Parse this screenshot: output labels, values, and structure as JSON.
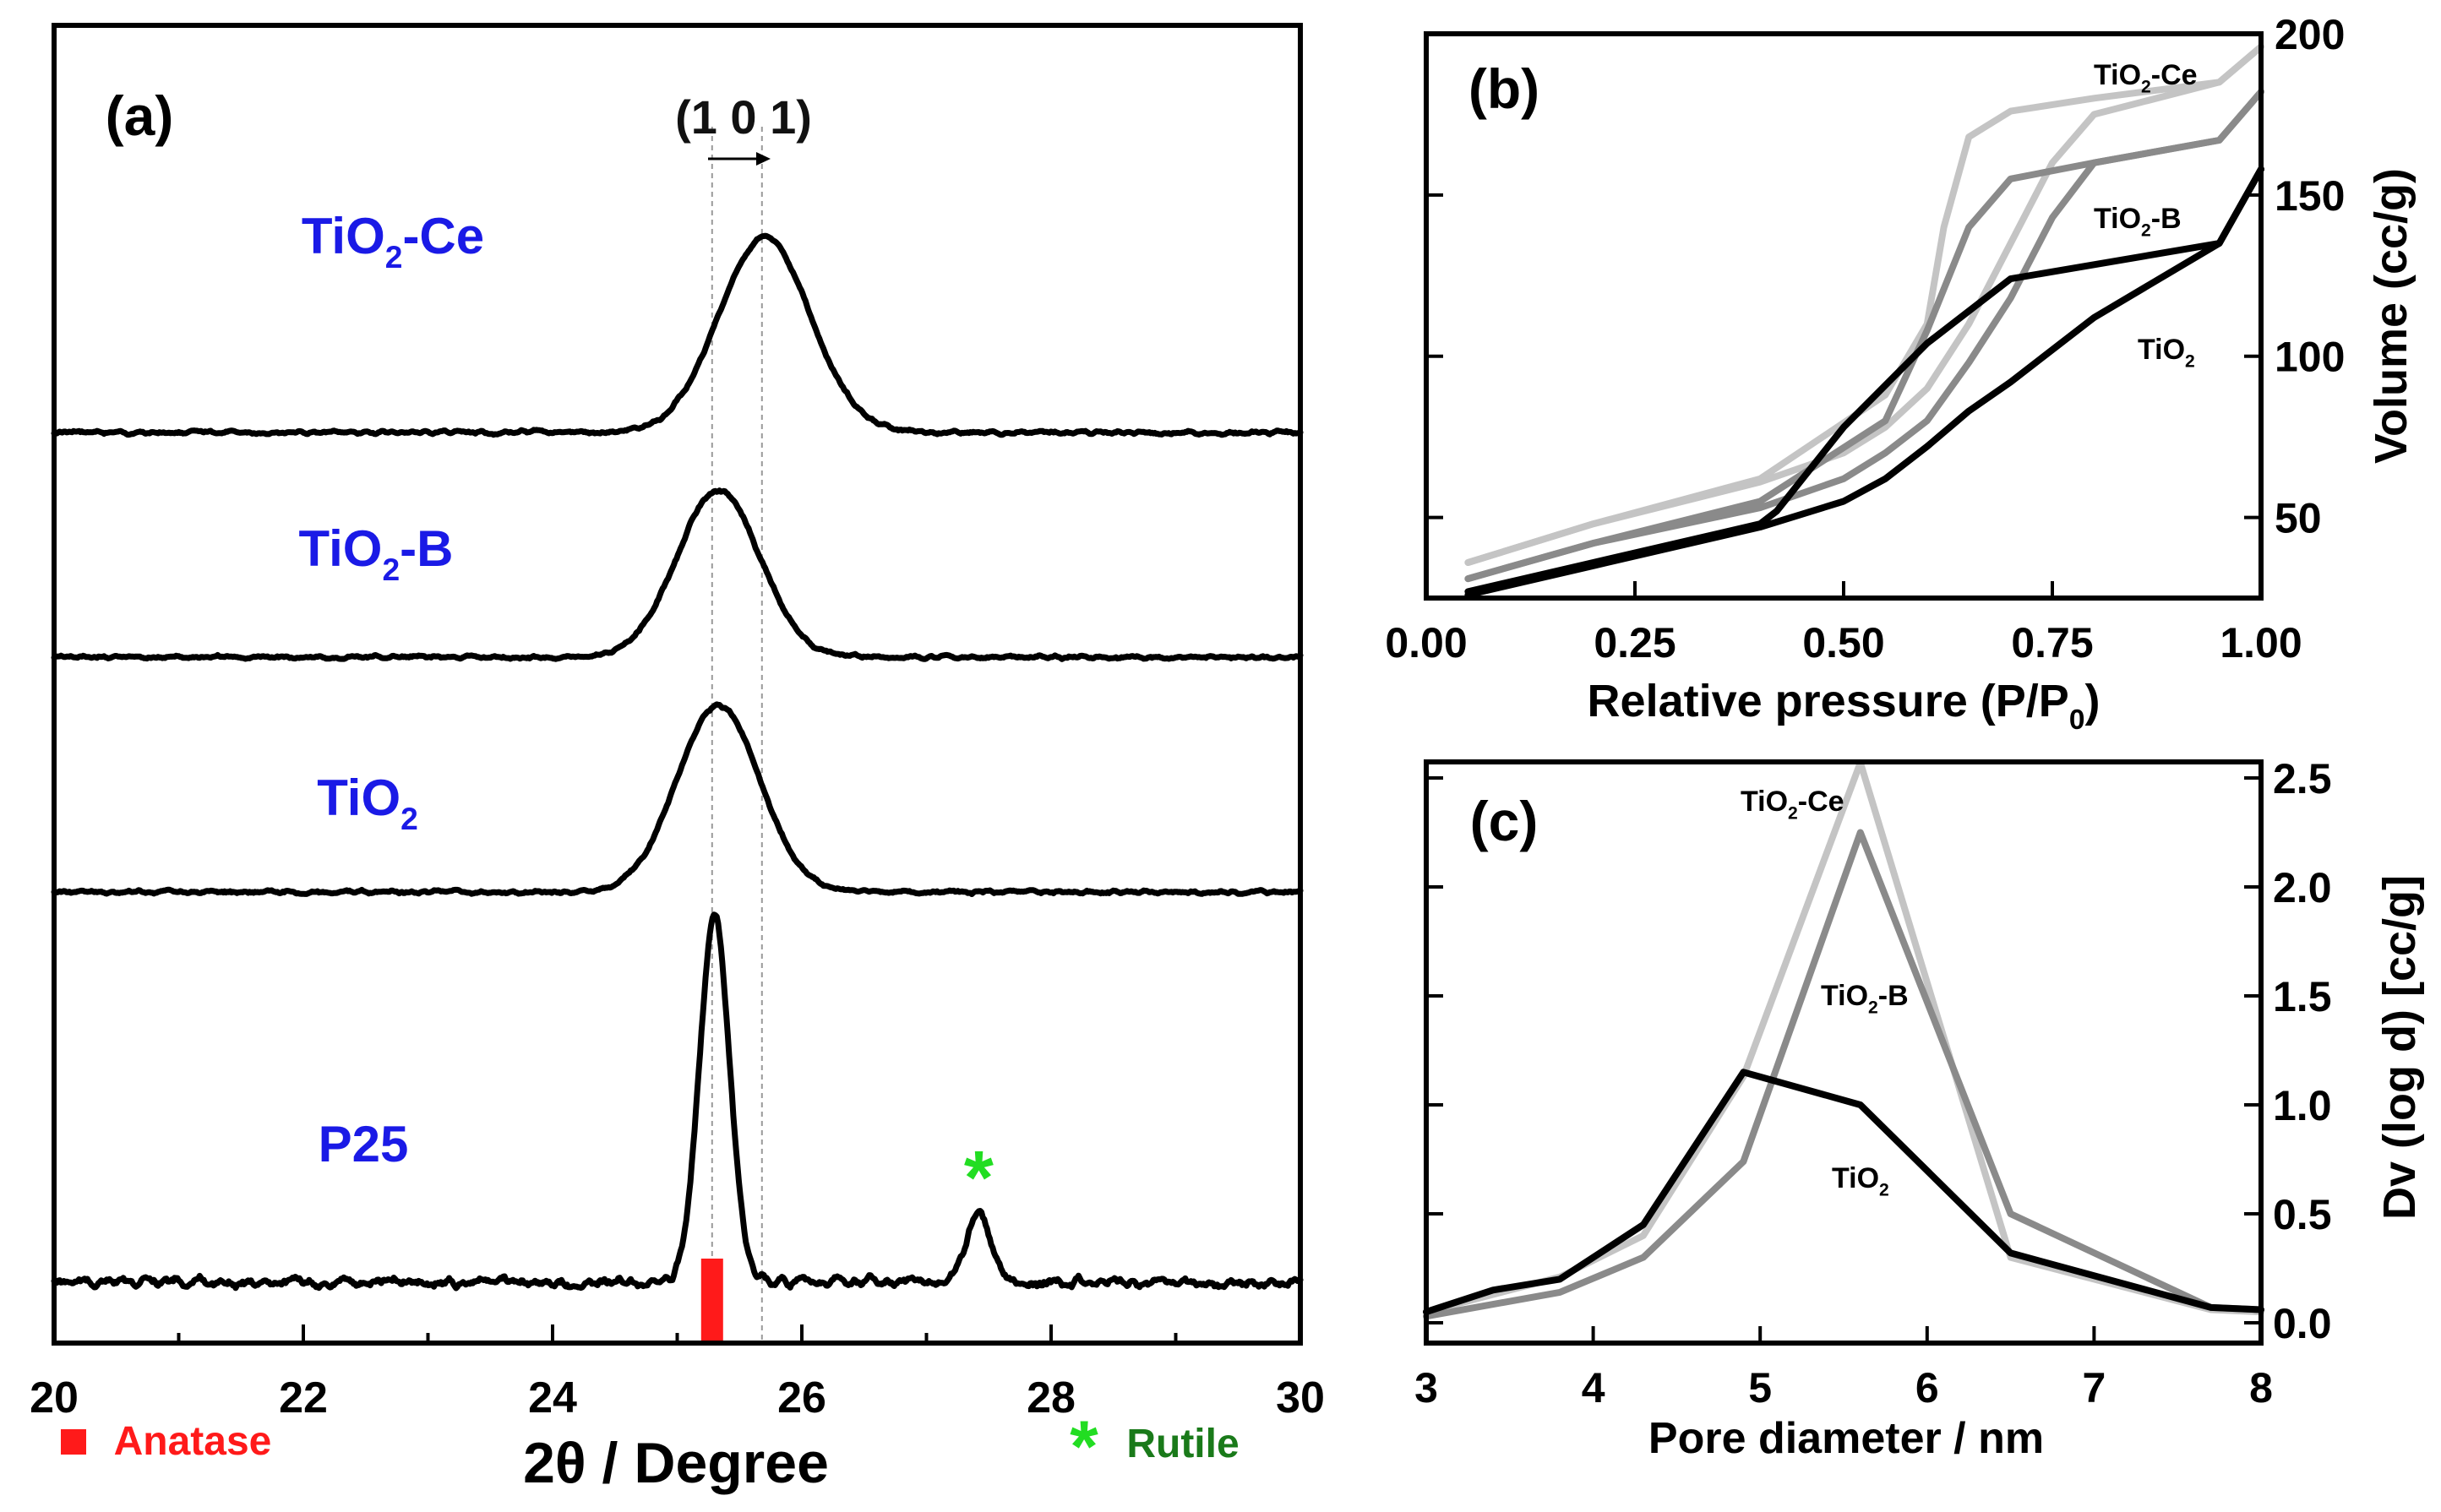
{
  "chart_data": [
    {
      "panel": "(a)",
      "type": "line",
      "xlabel": "2θ / Degree",
      "xlim": [
        20,
        30
      ],
      "xticks": [
        "20",
        "22",
        "24",
        "26",
        "28",
        "30"
      ],
      "reflection_label": "(1 0 1)",
      "reference_lines": [
        25.28,
        25.68
      ],
      "series": [
        {
          "name": "TiO₂-Ce",
          "label_main": "TiO",
          "label_sub": "2",
          "label_tail": "-Ce",
          "peak_center": 25.7,
          "peak_width": 0.52,
          "relative_height": 1.0
        },
        {
          "name": "TiO₂-B",
          "label_main": "TiO",
          "label_sub": "2",
          "label_tail": "-B",
          "peak_center": 25.33,
          "peak_width": 0.47,
          "relative_height": 0.86
        },
        {
          "name": "TiO₂",
          "label_main": "TiO",
          "label_sub": "2",
          "label_tail": "",
          "peak_center": 25.33,
          "peak_width": 0.47,
          "relative_height": 0.96
        },
        {
          "name": "P25",
          "label_main": "P25",
          "label_sub": "",
          "label_tail": "",
          "peak_center": 25.3,
          "peak_width": 0.17,
          "relative_height": 1.9,
          "secondary_peak_center": 27.42,
          "secondary_peak_height": 0.35
        }
      ],
      "legend": {
        "anatase": "Anatase",
        "rutile": "Rutile",
        "rutile_marker": "*",
        "anatase_position": 25.28
      },
      "colors": {
        "label": "#1a1ae6",
        "anatase": "#ff1a1a",
        "rutile": "#22dd22",
        "rutile_text": "#1a7a1a"
      }
    },
    {
      "panel": "(b)",
      "type": "line",
      "xlabel": "Relative pressure (P/P",
      "xlabel_sub": "0",
      "xlabel_tail": ")",
      "ylabel": "Volume (cc/g)",
      "xlim": [
        0.0,
        1.0
      ],
      "ylim": [
        25,
        200
      ],
      "xticks": [
        "0.00",
        "0.25",
        "0.50",
        "0.75",
        "1.00"
      ],
      "yticks": [
        "50",
        "100",
        "150",
        "200"
      ],
      "series": [
        {
          "name": "TiO₂-Ce",
          "label_main": "TiO",
          "label_sub": "2",
          "label_tail": "-Ce",
          "color": "#c4c4c4",
          "adsorption": [
            [
              0.05,
              36
            ],
            [
              0.2,
              48
            ],
            [
              0.4,
              61
            ],
            [
              0.5,
              70
            ],
            [
              0.55,
              78
            ],
            [
              0.6,
              90
            ],
            [
              0.65,
              110
            ],
            [
              0.7,
              135
            ],
            [
              0.75,
              160
            ],
            [
              0.8,
              175
            ],
            [
              0.95,
              185
            ],
            [
              1.0,
              196
            ]
          ],
          "desorption": [
            [
              1.0,
              196
            ],
            [
              0.95,
              185
            ],
            [
              0.8,
              180
            ],
            [
              0.7,
              176
            ],
            [
              0.65,
              168
            ],
            [
              0.62,
              140
            ],
            [
              0.6,
              110
            ],
            [
              0.55,
              88
            ],
            [
              0.4,
              62
            ],
            [
              0.2,
              48
            ],
            [
              0.05,
              36
            ]
          ]
        },
        {
          "name": "TiO₂-B",
          "label_main": "TiO",
          "label_sub": "2",
          "label_tail": "-B",
          "color": "#8a8a8a",
          "adsorption": [
            [
              0.05,
              31
            ],
            [
              0.2,
              42
            ],
            [
              0.4,
              53
            ],
            [
              0.5,
              62
            ],
            [
              0.55,
              70
            ],
            [
              0.6,
              80
            ],
            [
              0.65,
              98
            ],
            [
              0.7,
              118
            ],
            [
              0.75,
              143
            ],
            [
              0.8,
              160
            ],
            [
              0.95,
              167
            ],
            [
              1.0,
              182
            ]
          ],
          "desorption": [
            [
              1.0,
              182
            ],
            [
              0.95,
              167
            ],
            [
              0.8,
              160
            ],
            [
              0.7,
              155
            ],
            [
              0.65,
              140
            ],
            [
              0.6,
              108
            ],
            [
              0.55,
              80
            ],
            [
              0.4,
              55
            ],
            [
              0.2,
              42
            ],
            [
              0.05,
              31
            ]
          ]
        },
        {
          "name": "TiO₂",
          "label_main": "TiO",
          "label_sub": "2",
          "label_tail": "",
          "color": "#000000",
          "adsorption": [
            [
              0.05,
              26
            ],
            [
              0.2,
              35
            ],
            [
              0.4,
              47
            ],
            [
              0.5,
              55
            ],
            [
              0.55,
              62
            ],
            [
              0.6,
              72
            ],
            [
              0.65,
              83
            ],
            [
              0.7,
              92
            ],
            [
              0.75,
              102
            ],
            [
              0.8,
              112
            ],
            [
              0.95,
              135
            ],
            [
              1.0,
              158
            ]
          ],
          "desorption": [
            [
              1.0,
              158
            ],
            [
              0.95,
              135
            ],
            [
              0.7,
              124
            ],
            [
              0.6,
              104
            ],
            [
              0.5,
              78
            ],
            [
              0.42,
              52
            ],
            [
              0.4,
              48
            ],
            [
              0.2,
              36
            ],
            [
              0.05,
              27
            ]
          ]
        }
      ]
    },
    {
      "panel": "(c)",
      "type": "line",
      "xlabel": "Pore diameter / nm",
      "ylabel": "Dv (log d) [cc/g]",
      "xlim": [
        3,
        8
      ],
      "ylim": [
        0.0,
        2.5
      ],
      "xticks": [
        "3",
        "4",
        "5",
        "6",
        "7",
        "8"
      ],
      "yticks": [
        "0.0",
        "0.5",
        "1.0",
        "1.5",
        "2.0",
        "2.5"
      ],
      "series": [
        {
          "name": "TiO₂-Ce",
          "label_main": "TiO",
          "label_sub": "2",
          "label_tail": "-Ce",
          "color": "#c4c4c4",
          "x": [
            3.0,
            3.8,
            4.3,
            4.9,
            5.6,
            6.5,
            7.7,
            8.0
          ],
          "y": [
            0.05,
            0.21,
            0.4,
            1.13,
            2.57,
            0.3,
            0.06,
            0.05
          ]
        },
        {
          "name": "TiO₂-B",
          "label_main": "TiO",
          "label_sub": "2",
          "label_tail": "-B",
          "color": "#8a8a8a",
          "x": [
            3.0,
            3.8,
            4.3,
            4.9,
            5.6,
            6.5,
            7.7,
            8.0
          ],
          "y": [
            0.03,
            0.14,
            0.3,
            0.74,
            2.25,
            0.5,
            0.07,
            0.06
          ]
        },
        {
          "name": "TiO₂",
          "label_main": "TiO",
          "label_sub": "2",
          "label_tail": "",
          "color": "#000000",
          "x": [
            3.0,
            3.4,
            3.8,
            4.3,
            4.9,
            5.6,
            6.5,
            7.7,
            8.0
          ],
          "y": [
            0.05,
            0.15,
            0.2,
            0.45,
            1.15,
            1.0,
            0.32,
            0.07,
            0.06
          ]
        }
      ]
    }
  ]
}
